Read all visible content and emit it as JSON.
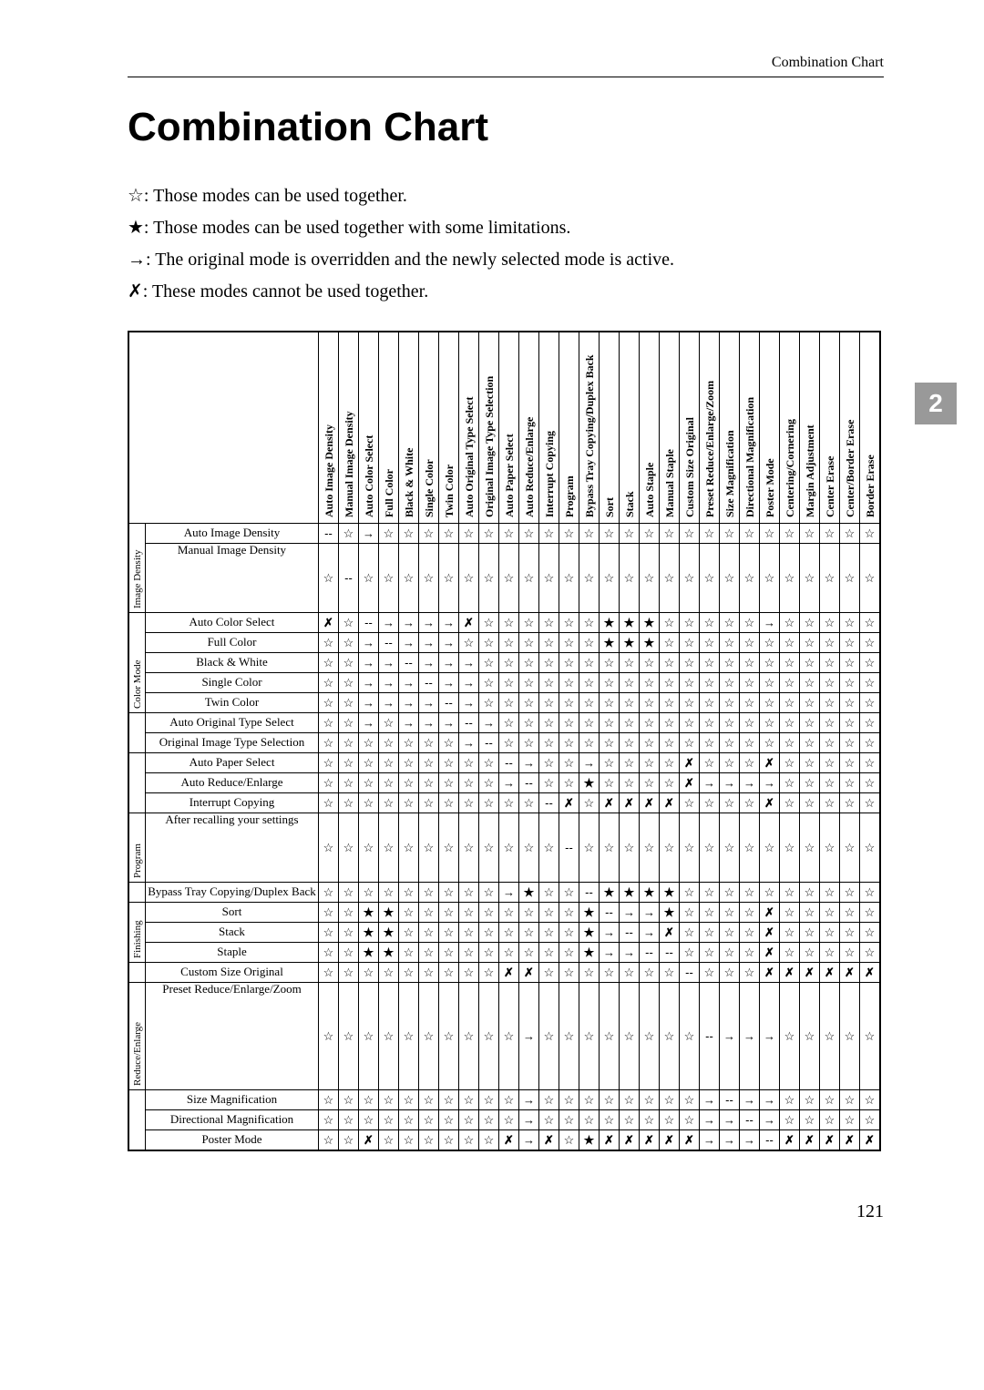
{
  "header": {
    "section_label": "Combination Chart"
  },
  "title": "Combination Chart",
  "chapter_tab": "2",
  "page_number": "121",
  "legend": {
    "open_star": "☆: Those modes can be used together.",
    "filled_star": "★: Those modes can be used together with some limitations.",
    "arrow": "→: The original mode is overridden and the newly selected mode is active.",
    "cross": "✗: These modes cannot be used together."
  },
  "symbols": {
    "open": "☆",
    "filled": "★",
    "arrow": "→",
    "cross": "✗",
    "dash": "--"
  },
  "col_headers": [
    "Auto Image Density",
    "Manual Image Density",
    "Auto Color Select",
    "Full Color",
    "Black & White",
    "Single Color",
    "Twin Color",
    "Auto Original Type Select",
    "Original Image Type Selection",
    "Auto Paper Select",
    "Auto Reduce/Enlarge",
    "Interrupt Copying",
    "Program",
    "Bypass Tray Copying/Duplex Back",
    "Sort",
    "Stack",
    "Auto Staple",
    "Manual Staple",
    "Custom Size Original",
    "Preset Reduce/Enlarge/Zoom",
    "Size Magnification",
    "Directional Magnification",
    "Poster Mode",
    "Centering/Cornering",
    "Margin Adjustment",
    "Center Erase",
    "Center/Border Erase",
    "Border Erase"
  ],
  "row_groups": [
    {
      "name": "Image Density",
      "rows": [
        "Auto Image Density",
        "Manual Image Density"
      ]
    },
    {
      "name": "Color Mode",
      "rows": [
        "Auto Color Select",
        "Full Color",
        "Black & White",
        "Single Color",
        "Twin Color"
      ]
    },
    {
      "name": "",
      "rows": [
        "Auto Original Type Select",
        "Original Image Type Selection"
      ]
    },
    {
      "name": "",
      "rows": [
        "Auto Paper Select",
        "Auto Reduce/Enlarge",
        "Interrupt Copying"
      ]
    },
    {
      "name": "Program",
      "rows": [
        "After recalling your settings"
      ]
    },
    {
      "name": "",
      "rows": [
        "Bypass Tray Copying/Duplex Back"
      ]
    },
    {
      "name": "Finishing",
      "rows": [
        "Sort",
        "Stack",
        "Staple"
      ]
    },
    {
      "name": "",
      "rows": [
        "Custom Size Original"
      ]
    },
    {
      "name": "Reduce/Enlarge",
      "rows": [
        "Preset Reduce/Enlarge/Zoom"
      ]
    },
    {
      "name": "",
      "rows": [
        "Size Magnification",
        "Directional Magnification",
        "Poster Mode"
      ]
    }
  ],
  "matrix": [
    [
      "--",
      "☆",
      "→",
      "☆",
      "☆",
      "☆",
      "☆",
      "☆",
      "☆",
      "☆",
      "☆",
      "☆",
      "☆",
      "☆",
      "☆",
      "☆",
      "☆",
      "☆",
      "☆",
      "☆",
      "☆",
      "☆",
      "☆",
      "☆",
      "☆",
      "☆",
      "☆",
      "☆"
    ],
    [
      "☆",
      "--",
      "☆",
      "☆",
      "☆",
      "☆",
      "☆",
      "☆",
      "☆",
      "☆",
      "☆",
      "☆",
      "☆",
      "☆",
      "☆",
      "☆",
      "☆",
      "☆",
      "☆",
      "☆",
      "☆",
      "☆",
      "☆",
      "☆",
      "☆",
      "☆",
      "☆",
      "☆"
    ],
    [
      "✗",
      "☆",
      "--",
      "→",
      "→",
      "→",
      "→",
      "✗",
      "☆",
      "☆",
      "☆",
      "☆",
      "☆",
      "☆",
      "★",
      "★",
      "★",
      "☆",
      "☆",
      "☆",
      "☆",
      "☆",
      "→",
      "☆",
      "☆",
      "☆",
      "☆",
      "☆"
    ],
    [
      "☆",
      "☆",
      "→",
      "--",
      "→",
      "→",
      "→",
      "☆",
      "☆",
      "☆",
      "☆",
      "☆",
      "☆",
      "☆",
      "★",
      "★",
      "★",
      "☆",
      "☆",
      "☆",
      "☆",
      "☆",
      "☆",
      "☆",
      "☆",
      "☆",
      "☆",
      "☆"
    ],
    [
      "☆",
      "☆",
      "→",
      "→",
      "--",
      "→",
      "→",
      "→",
      "☆",
      "☆",
      "☆",
      "☆",
      "☆",
      "☆",
      "☆",
      "☆",
      "☆",
      "☆",
      "☆",
      "☆",
      "☆",
      "☆",
      "☆",
      "☆",
      "☆",
      "☆",
      "☆",
      "☆"
    ],
    [
      "☆",
      "☆",
      "→",
      "→",
      "→",
      "--",
      "→",
      "→",
      "☆",
      "☆",
      "☆",
      "☆",
      "☆",
      "☆",
      "☆",
      "☆",
      "☆",
      "☆",
      "☆",
      "☆",
      "☆",
      "☆",
      "☆",
      "☆",
      "☆",
      "☆",
      "☆",
      "☆"
    ],
    [
      "☆",
      "☆",
      "→",
      "→",
      "→",
      "→",
      "--",
      "→",
      "☆",
      "☆",
      "☆",
      "☆",
      "☆",
      "☆",
      "☆",
      "☆",
      "☆",
      "☆",
      "☆",
      "☆",
      "☆",
      "☆",
      "☆",
      "☆",
      "☆",
      "☆",
      "☆",
      "☆"
    ],
    [
      "☆",
      "☆",
      "→",
      "☆",
      "→",
      "→",
      "→",
      "--",
      "→",
      "☆",
      "☆",
      "☆",
      "☆",
      "☆",
      "☆",
      "☆",
      "☆",
      "☆",
      "☆",
      "☆",
      "☆",
      "☆",
      "☆",
      "☆",
      "☆",
      "☆",
      "☆",
      "☆"
    ],
    [
      "☆",
      "☆",
      "☆",
      "☆",
      "☆",
      "☆",
      "☆",
      "→",
      "--",
      "☆",
      "☆",
      "☆",
      "☆",
      "☆",
      "☆",
      "☆",
      "☆",
      "☆",
      "☆",
      "☆",
      "☆",
      "☆",
      "☆",
      "☆",
      "☆",
      "☆",
      "☆",
      "☆"
    ],
    [
      "☆",
      "☆",
      "☆",
      "☆",
      "☆",
      "☆",
      "☆",
      "☆",
      "☆",
      "--",
      "→",
      "☆",
      "☆",
      "→",
      "☆",
      "☆",
      "☆",
      "☆",
      "✗",
      "☆",
      "☆",
      "☆",
      "✗",
      "☆",
      "☆",
      "☆",
      "☆",
      "☆"
    ],
    [
      "☆",
      "☆",
      "☆",
      "☆",
      "☆",
      "☆",
      "☆",
      "☆",
      "☆",
      "→",
      "--",
      "☆",
      "☆",
      "★",
      "☆",
      "☆",
      "☆",
      "☆",
      "✗",
      "→",
      "→",
      "→",
      "→",
      "☆",
      "☆",
      "☆",
      "☆",
      "☆"
    ],
    [
      "☆",
      "☆",
      "☆",
      "☆",
      "☆",
      "☆",
      "☆",
      "☆",
      "☆",
      "☆",
      "☆",
      "--",
      "✗",
      "☆",
      "✗",
      "✗",
      "✗",
      "✗",
      "☆",
      "☆",
      "☆",
      "☆",
      "✗",
      "☆",
      "☆",
      "☆",
      "☆",
      "☆"
    ],
    [
      "☆",
      "☆",
      "☆",
      "☆",
      "☆",
      "☆",
      "☆",
      "☆",
      "☆",
      "☆",
      "☆",
      "☆",
      "--",
      "☆",
      "☆",
      "☆",
      "☆",
      "☆",
      "☆",
      "☆",
      "☆",
      "☆",
      "☆",
      "☆",
      "☆",
      "☆",
      "☆",
      "☆"
    ],
    [
      "☆",
      "☆",
      "☆",
      "☆",
      "☆",
      "☆",
      "☆",
      "☆",
      "☆",
      "→",
      "★",
      "☆",
      "☆",
      "--",
      "★",
      "★",
      "★",
      "★",
      "☆",
      "☆",
      "☆",
      "☆",
      "☆",
      "☆",
      "☆",
      "☆",
      "☆",
      "☆"
    ],
    [
      "☆",
      "☆",
      "★",
      "★",
      "☆",
      "☆",
      "☆",
      "☆",
      "☆",
      "☆",
      "☆",
      "☆",
      "☆",
      "★",
      "--",
      "→",
      "→",
      "★",
      "☆",
      "☆",
      "☆",
      "☆",
      "✗",
      "☆",
      "☆",
      "☆",
      "☆",
      "☆"
    ],
    [
      "☆",
      "☆",
      "★",
      "★",
      "☆",
      "☆",
      "☆",
      "☆",
      "☆",
      "☆",
      "☆",
      "☆",
      "☆",
      "★",
      "→",
      "--",
      "→",
      "✗",
      "☆",
      "☆",
      "☆",
      "☆",
      "✗",
      "☆",
      "☆",
      "☆",
      "☆",
      "☆"
    ],
    [
      "☆",
      "☆",
      "★",
      "★",
      "☆",
      "☆",
      "☆",
      "☆",
      "☆",
      "☆",
      "☆",
      "☆",
      "☆",
      "★",
      "→",
      "→",
      "--",
      "--",
      "☆",
      "☆",
      "☆",
      "☆",
      "✗",
      "☆",
      "☆",
      "☆",
      "☆",
      "☆"
    ],
    [
      "☆",
      "☆",
      "☆",
      "☆",
      "☆",
      "☆",
      "☆",
      "☆",
      "☆",
      "✗",
      "✗",
      "☆",
      "☆",
      "☆",
      "☆",
      "☆",
      "☆",
      "☆",
      "--",
      "☆",
      "☆",
      "☆",
      "✗",
      "✗",
      "✗",
      "✗",
      "✗",
      "✗"
    ],
    [
      "☆",
      "☆",
      "☆",
      "☆",
      "☆",
      "☆",
      "☆",
      "☆",
      "☆",
      "☆",
      "→",
      "☆",
      "☆",
      "☆",
      "☆",
      "☆",
      "☆",
      "☆",
      "☆",
      "--",
      "→",
      "→",
      "→",
      "☆",
      "☆",
      "☆",
      "☆",
      "☆"
    ],
    [
      "☆",
      "☆",
      "☆",
      "☆",
      "☆",
      "☆",
      "☆",
      "☆",
      "☆",
      "☆",
      "→",
      "☆",
      "☆",
      "☆",
      "☆",
      "☆",
      "☆",
      "☆",
      "☆",
      "→",
      "--",
      "→",
      "→",
      "☆",
      "☆",
      "☆",
      "☆",
      "☆"
    ],
    [
      "☆",
      "☆",
      "☆",
      "☆",
      "☆",
      "☆",
      "☆",
      "☆",
      "☆",
      "☆",
      "→",
      "☆",
      "☆",
      "☆",
      "☆",
      "☆",
      "☆",
      "☆",
      "☆",
      "→",
      "→",
      "--",
      "→",
      "☆",
      "☆",
      "☆",
      "☆",
      "☆"
    ],
    [
      "☆",
      "☆",
      "✗",
      "☆",
      "☆",
      "☆",
      "☆",
      "☆",
      "☆",
      "✗",
      "→",
      "✗",
      "☆",
      "★",
      "✗",
      "✗",
      "✗",
      "✗",
      "✗",
      "→",
      "→",
      "→",
      "--",
      "✗",
      "✗",
      "✗",
      "✗",
      "✗"
    ]
  ],
  "tall_rows": [
    1,
    12,
    18
  ],
  "vtall_rows": [
    18
  ]
}
